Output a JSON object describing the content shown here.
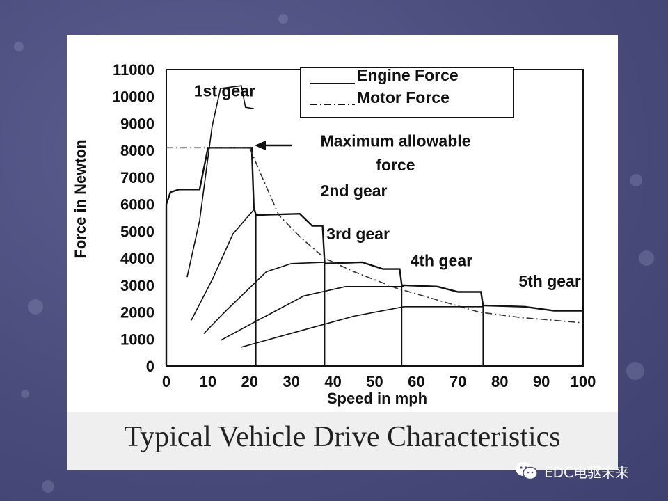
{
  "slide": {
    "title": "Typical Vehicle Drive Characteristics",
    "watermark": "EDC电驱未来",
    "watermark_icon": "wechat-icon"
  },
  "chart_data": {
    "type": "line",
    "title": "",
    "xlabel": "Speed in mph",
    "ylabel": "Force in Newton",
    "xlim": [
      0,
      100
    ],
    "ylim": [
      0,
      11000
    ],
    "xticks": [
      "0",
      "10",
      "20",
      "30",
      "40",
      "50",
      "60",
      "70",
      "80",
      "90",
      "100"
    ],
    "yticks": [
      "0",
      "1000",
      "2000",
      "3000",
      "4000",
      "5000",
      "6000",
      "7000",
      "8000",
      "9000",
      "10000",
      "11000"
    ],
    "legend": {
      "position": "top-right",
      "entries": [
        "Engine Force",
        "Motor Force"
      ]
    },
    "annotations": [
      {
        "text": "1st gear",
        "x": 14,
        "y": 10000
      },
      {
        "text": "Maximum allowable",
        "x": 55,
        "y": 8150
      },
      {
        "text": "force",
        "x": 55,
        "y": 7250
      },
      {
        "text": "2nd gear",
        "x": 45,
        "y": 6300
      },
      {
        "text": "3rd gear",
        "x": 46,
        "y": 4700
      },
      {
        "text": "4th gear",
        "x": 66,
        "y": 3700
      },
      {
        "text": "5th gear",
        "x": 92,
        "y": 2950
      }
    ],
    "max_allowable_force": 8100,
    "series": [
      {
        "name": "Engine Force",
        "style": "solid",
        "points": [
          [
            0,
            0
          ],
          [
            0,
            6000
          ],
          [
            1,
            6450
          ],
          [
            3,
            6550
          ],
          [
            8,
            6550
          ],
          [
            10,
            8100
          ],
          [
            20,
            8100
          ],
          [
            20.5,
            8100
          ],
          [
            21,
            5900
          ],
          [
            21.5,
            5600
          ],
          [
            32,
            5650
          ],
          [
            35,
            5200
          ],
          [
            37.5,
            5200
          ],
          [
            38,
            3800
          ],
          [
            47,
            3850
          ],
          [
            52,
            3600
          ],
          [
            56,
            3600
          ],
          [
            56.5,
            3000
          ],
          [
            65,
            2950
          ],
          [
            70,
            2750
          ],
          [
            75.5,
            2750
          ],
          [
            76,
            2250
          ],
          [
            86,
            2200
          ],
          [
            93,
            2050
          ],
          [
            100,
            2050
          ]
        ]
      },
      {
        "name": "Motor Force",
        "style": "dashdot",
        "points": [
          [
            0,
            8100
          ],
          [
            20,
            8100
          ],
          [
            23,
            7000
          ],
          [
            27,
            5600
          ],
          [
            32,
            4800
          ],
          [
            38,
            4000
          ],
          [
            45,
            3500
          ],
          [
            55,
            2900
          ],
          [
            65,
            2450
          ],
          [
            75,
            2000
          ],
          [
            85,
            1800
          ],
          [
            100,
            1600
          ]
        ]
      },
      {
        "name": "",
        "style": "solid",
        "points": [
          [
            5,
            3300
          ],
          [
            8,
            5400
          ],
          [
            11,
            8900
          ],
          [
            13,
            10300
          ],
          [
            18,
            10400
          ],
          [
            19,
            9600
          ],
          [
            21,
            9550
          ]
        ]
      },
      {
        "name": "",
        "style": "solid",
        "points": [
          [
            6,
            1700
          ],
          [
            11,
            3200
          ],
          [
            16,
            4900
          ],
          [
            21,
            5800
          ]
        ]
      },
      {
        "name": "",
        "style": "solid",
        "points": [
          [
            9,
            1200
          ],
          [
            14,
            2000
          ],
          [
            20,
            2900
          ],
          [
            24,
            3500
          ],
          [
            30,
            3800
          ],
          [
            38,
            3850
          ]
        ]
      },
      {
        "name": "",
        "style": "solid",
        "points": [
          [
            13,
            950
          ],
          [
            22,
            1700
          ],
          [
            33,
            2600
          ],
          [
            43,
            2950
          ],
          [
            52,
            2950
          ],
          [
            57,
            2950
          ]
        ]
      },
      {
        "name": "",
        "style": "solid",
        "points": [
          [
            18,
            700
          ],
          [
            32,
            1300
          ],
          [
            45,
            1850
          ],
          [
            57,
            2200
          ],
          [
            68,
            2200
          ],
          [
            76,
            2200
          ]
        ]
      },
      {
        "name": "",
        "style": "solid",
        "points": [
          [
            21.5,
            5600
          ],
          [
            21.5,
            0
          ]
        ]
      },
      {
        "name": "",
        "style": "solid",
        "points": [
          [
            38,
            3850
          ],
          [
            38,
            0
          ]
        ]
      },
      {
        "name": "",
        "style": "solid",
        "points": [
          [
            56.5,
            3000
          ],
          [
            56.5,
            0
          ]
        ]
      },
      {
        "name": "",
        "style": "solid",
        "points": [
          [
            76,
            2250
          ],
          [
            76,
            0
          ]
        ]
      }
    ]
  }
}
